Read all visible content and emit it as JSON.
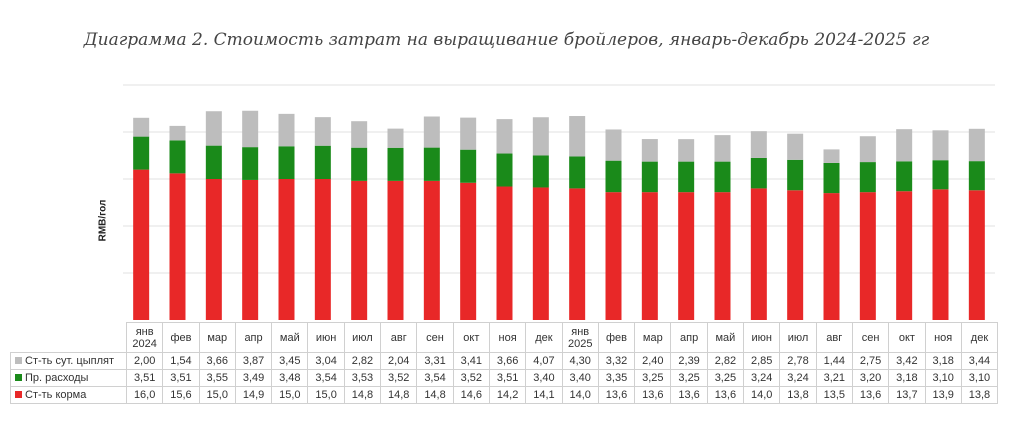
{
  "chart_data": {
    "type": "bar",
    "stacked": true,
    "title": "Диаграмма 2. Стоимость затрат на выращивание бройлеров, январь-декабрь 2024-2025 гг",
    "ylabel": "RMB/гол",
    "ylim": [
      0,
      25
    ],
    "grid": true,
    "categories": [
      "янв 2024",
      "фев",
      "мар",
      "апр",
      "май",
      "июн",
      "июл",
      "авг",
      "сен",
      "окт",
      "ноя",
      "дек",
      "янв 2025",
      "фев",
      "мар",
      "апр",
      "май",
      "июн",
      "июл",
      "авг",
      "сен",
      "окт",
      "ноя",
      "дек"
    ],
    "series": [
      {
        "name": "Ст-ть корма",
        "color": "#e82828",
        "labels": [
          "16,0",
          "15,6",
          "15,0",
          "14,9",
          "15,0",
          "15,0",
          "14,8",
          "14,8",
          "14,8",
          "14,6",
          "14,2",
          "14,1",
          "14,0",
          "13,6",
          "13,6",
          "13,6",
          "13,6",
          "14,0",
          "13,8",
          "13,5",
          "13,6",
          "13,7",
          "13,9",
          "13,8"
        ],
        "values": [
          16.0,
          15.6,
          15.0,
          14.9,
          15.0,
          15.0,
          14.8,
          14.8,
          14.8,
          14.6,
          14.2,
          14.1,
          14.0,
          13.6,
          13.6,
          13.6,
          13.6,
          14.0,
          13.8,
          13.5,
          13.6,
          13.7,
          13.9,
          13.8
        ]
      },
      {
        "name": "Пр. расходы",
        "color": "#1a8a1a",
        "labels": [
          "3,51",
          "3,51",
          "3,55",
          "3,49",
          "3,48",
          "3,54",
          "3,53",
          "3,52",
          "3,54",
          "3,52",
          "3,51",
          "3,40",
          "3,40",
          "3,35",
          "3,25",
          "3,25",
          "3,25",
          "3,24",
          "3,24",
          "3,21",
          "3,20",
          "3,18",
          "3,10",
          "3,10"
        ],
        "values": [
          3.51,
          3.51,
          3.55,
          3.49,
          3.48,
          3.54,
          3.53,
          3.52,
          3.54,
          3.52,
          3.51,
          3.4,
          3.4,
          3.35,
          3.25,
          3.25,
          3.25,
          3.24,
          3.24,
          3.21,
          3.2,
          3.18,
          3.1,
          3.1
        ]
      },
      {
        "name": "Ст-ть сут. цыплят",
        "color": "#bdbdbd",
        "labels": [
          "2,00",
          "1,54",
          "3,66",
          "3,87",
          "3,45",
          "3,04",
          "2,82",
          "2,04",
          "3,31",
          "3,41",
          "3,66",
          "4,07",
          "4,30",
          "3,32",
          "2,40",
          "2,39",
          "2,82",
          "2,85",
          "2,78",
          "1,44",
          "2,75",
          "3,42",
          "3,18",
          "3,44"
        ],
        "values": [
          2.0,
          1.54,
          3.66,
          3.87,
          3.45,
          3.04,
          2.82,
          2.04,
          3.31,
          3.41,
          3.66,
          4.07,
          4.3,
          3.32,
          2.4,
          2.39,
          2.82,
          2.85,
          2.78,
          1.44,
          2.75,
          3.42,
          3.18,
          3.44
        ]
      }
    ],
    "table_order": [
      2,
      1,
      0
    ]
  }
}
